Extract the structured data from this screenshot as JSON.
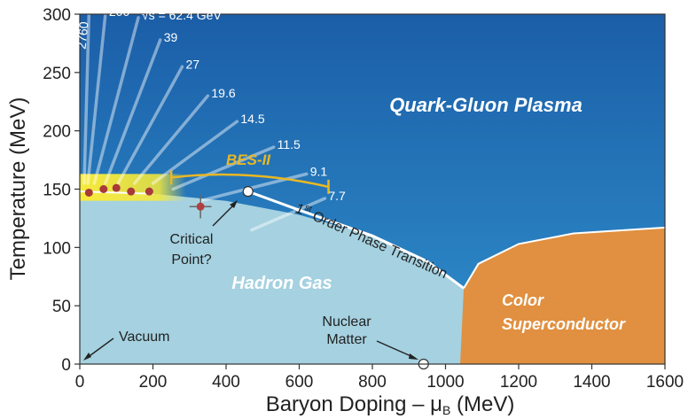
{
  "chart_data": {
    "type": "scatter",
    "title": "",
    "xlabel": "Baryon Doping – μ",
    "xlabel_sub": "B",
    "xlabel_unit": " (MeV)",
    "ylabel": "Temperature (MeV)",
    "xlim": [
      0,
      1600
    ],
    "ylim": [
      0,
      300
    ],
    "xticks": [
      0,
      200,
      400,
      600,
      800,
      1000,
      1200,
      1400,
      1600
    ],
    "yticks": [
      0,
      50,
      100,
      150,
      200,
      250,
      300
    ],
    "xtick_labels": [
      "0",
      "200",
      "400",
      "600",
      "800",
      "1000",
      "1200",
      "1400",
      "1600"
    ],
    "ytick_labels": [
      "0",
      "50",
      "100",
      "150",
      "200",
      "250",
      "300"
    ],
    "grid": false,
    "regions": {
      "qgp": "Quark-Gluon Plasma",
      "hadron": "Hadron Gas",
      "color_sc_line1": "Color",
      "color_sc_line2": "Superconductor"
    },
    "colors": {
      "qgp_top": "#1b5ea8",
      "qgp_bottom": "#2a86c4",
      "hadron": "#a5d1e0",
      "color_sc": "#e09040",
      "freezeout_band": "#f2e23a",
      "freezeout_points": "#a83a3a",
      "bes": "#e8b824",
      "critical_point": "#b04040"
    },
    "crossover_boundary": [
      [
        0,
        148
      ],
      [
        200,
        146
      ],
      [
        400,
        140
      ],
      [
        600,
        128
      ],
      [
        800,
        110
      ],
      [
        950,
        88
      ],
      [
        1050,
        65
      ],
      [
        1100,
        40
      ],
      [
        1130,
        15
      ],
      [
        1140,
        0
      ]
    ],
    "color_sc_boundary": [
      [
        1040,
        0
      ],
      [
        1050,
        65
      ],
      [
        1090,
        86
      ],
      [
        1200,
        103
      ],
      [
        1350,
        112
      ],
      [
        1600,
        117
      ]
    ],
    "first_order_line": [
      [
        460,
        148
      ],
      [
        600,
        132
      ],
      [
        800,
        110
      ],
      [
        950,
        88
      ],
      [
        1050,
        65
      ]
    ],
    "beam_energy_labels": [
      "2760",
      "200",
      "√s = 62.4 GeV",
      "39",
      "27",
      "19.6",
      "14.5",
      "11.5",
      "9.1",
      "7.7"
    ],
    "beam_energy_lines": [
      {
        "label": "2760",
        "from": [
          12,
          155
        ],
        "to": [
          25,
          300
        ]
      },
      {
        "label": "200",
        "from": [
          22,
          155
        ],
        "to": [
          70,
          300
        ]
      },
      {
        "label": "√s = 62.4 GeV",
        "from": [
          40,
          155
        ],
        "to": [
          160,
          297
        ]
      },
      {
        "label": "39",
        "from": [
          70,
          155
        ],
        "to": [
          220,
          278
        ]
      },
      {
        "label": "27",
        "from": [
          105,
          155
        ],
        "to": [
          280,
          255
        ]
      },
      {
        "label": "19.6",
        "from": [
          150,
          155
        ],
        "to": [
          350,
          230
        ]
      },
      {
        "label": "14.5",
        "from": [
          200,
          155
        ],
        "to": [
          430,
          208
        ]
      },
      {
        "label": "11.5",
        "from": [
          255,
          150
        ],
        "to": [
          530,
          186
        ]
      },
      {
        "label": "9.1",
        "from": [
          330,
          140
        ],
        "to": [
          620,
          163
        ]
      },
      {
        "label": "7.7",
        "from": [
          470,
          115
        ],
        "to": [
          670,
          142
        ]
      }
    ],
    "freezeout_points": [
      [
        25,
        147
      ],
      [
        65,
        150
      ],
      [
        100,
        151
      ],
      [
        140,
        148
      ],
      [
        190,
        148
      ]
    ],
    "critical_point_marker": {
      "x": 330,
      "y": 135,
      "xerr": 30,
      "yerr": 10
    },
    "critical_point_open": {
      "x": 460,
      "y": 148
    },
    "nuclear_matter_point": {
      "x": 940,
      "y": 0
    },
    "bes_range": {
      "label": "BES-II",
      "x_start": 250,
      "x_end": 680
    },
    "annotations": {
      "critical_line1": "Critical",
      "critical_line2": "Point?",
      "nuclear_line1": "Nuclear",
      "nuclear_line2": "Matter",
      "vacuum": "Vacuum",
      "first_order": "Order Phase Transition",
      "first_order_sup": "st",
      "first_order_num": "1"
    }
  }
}
